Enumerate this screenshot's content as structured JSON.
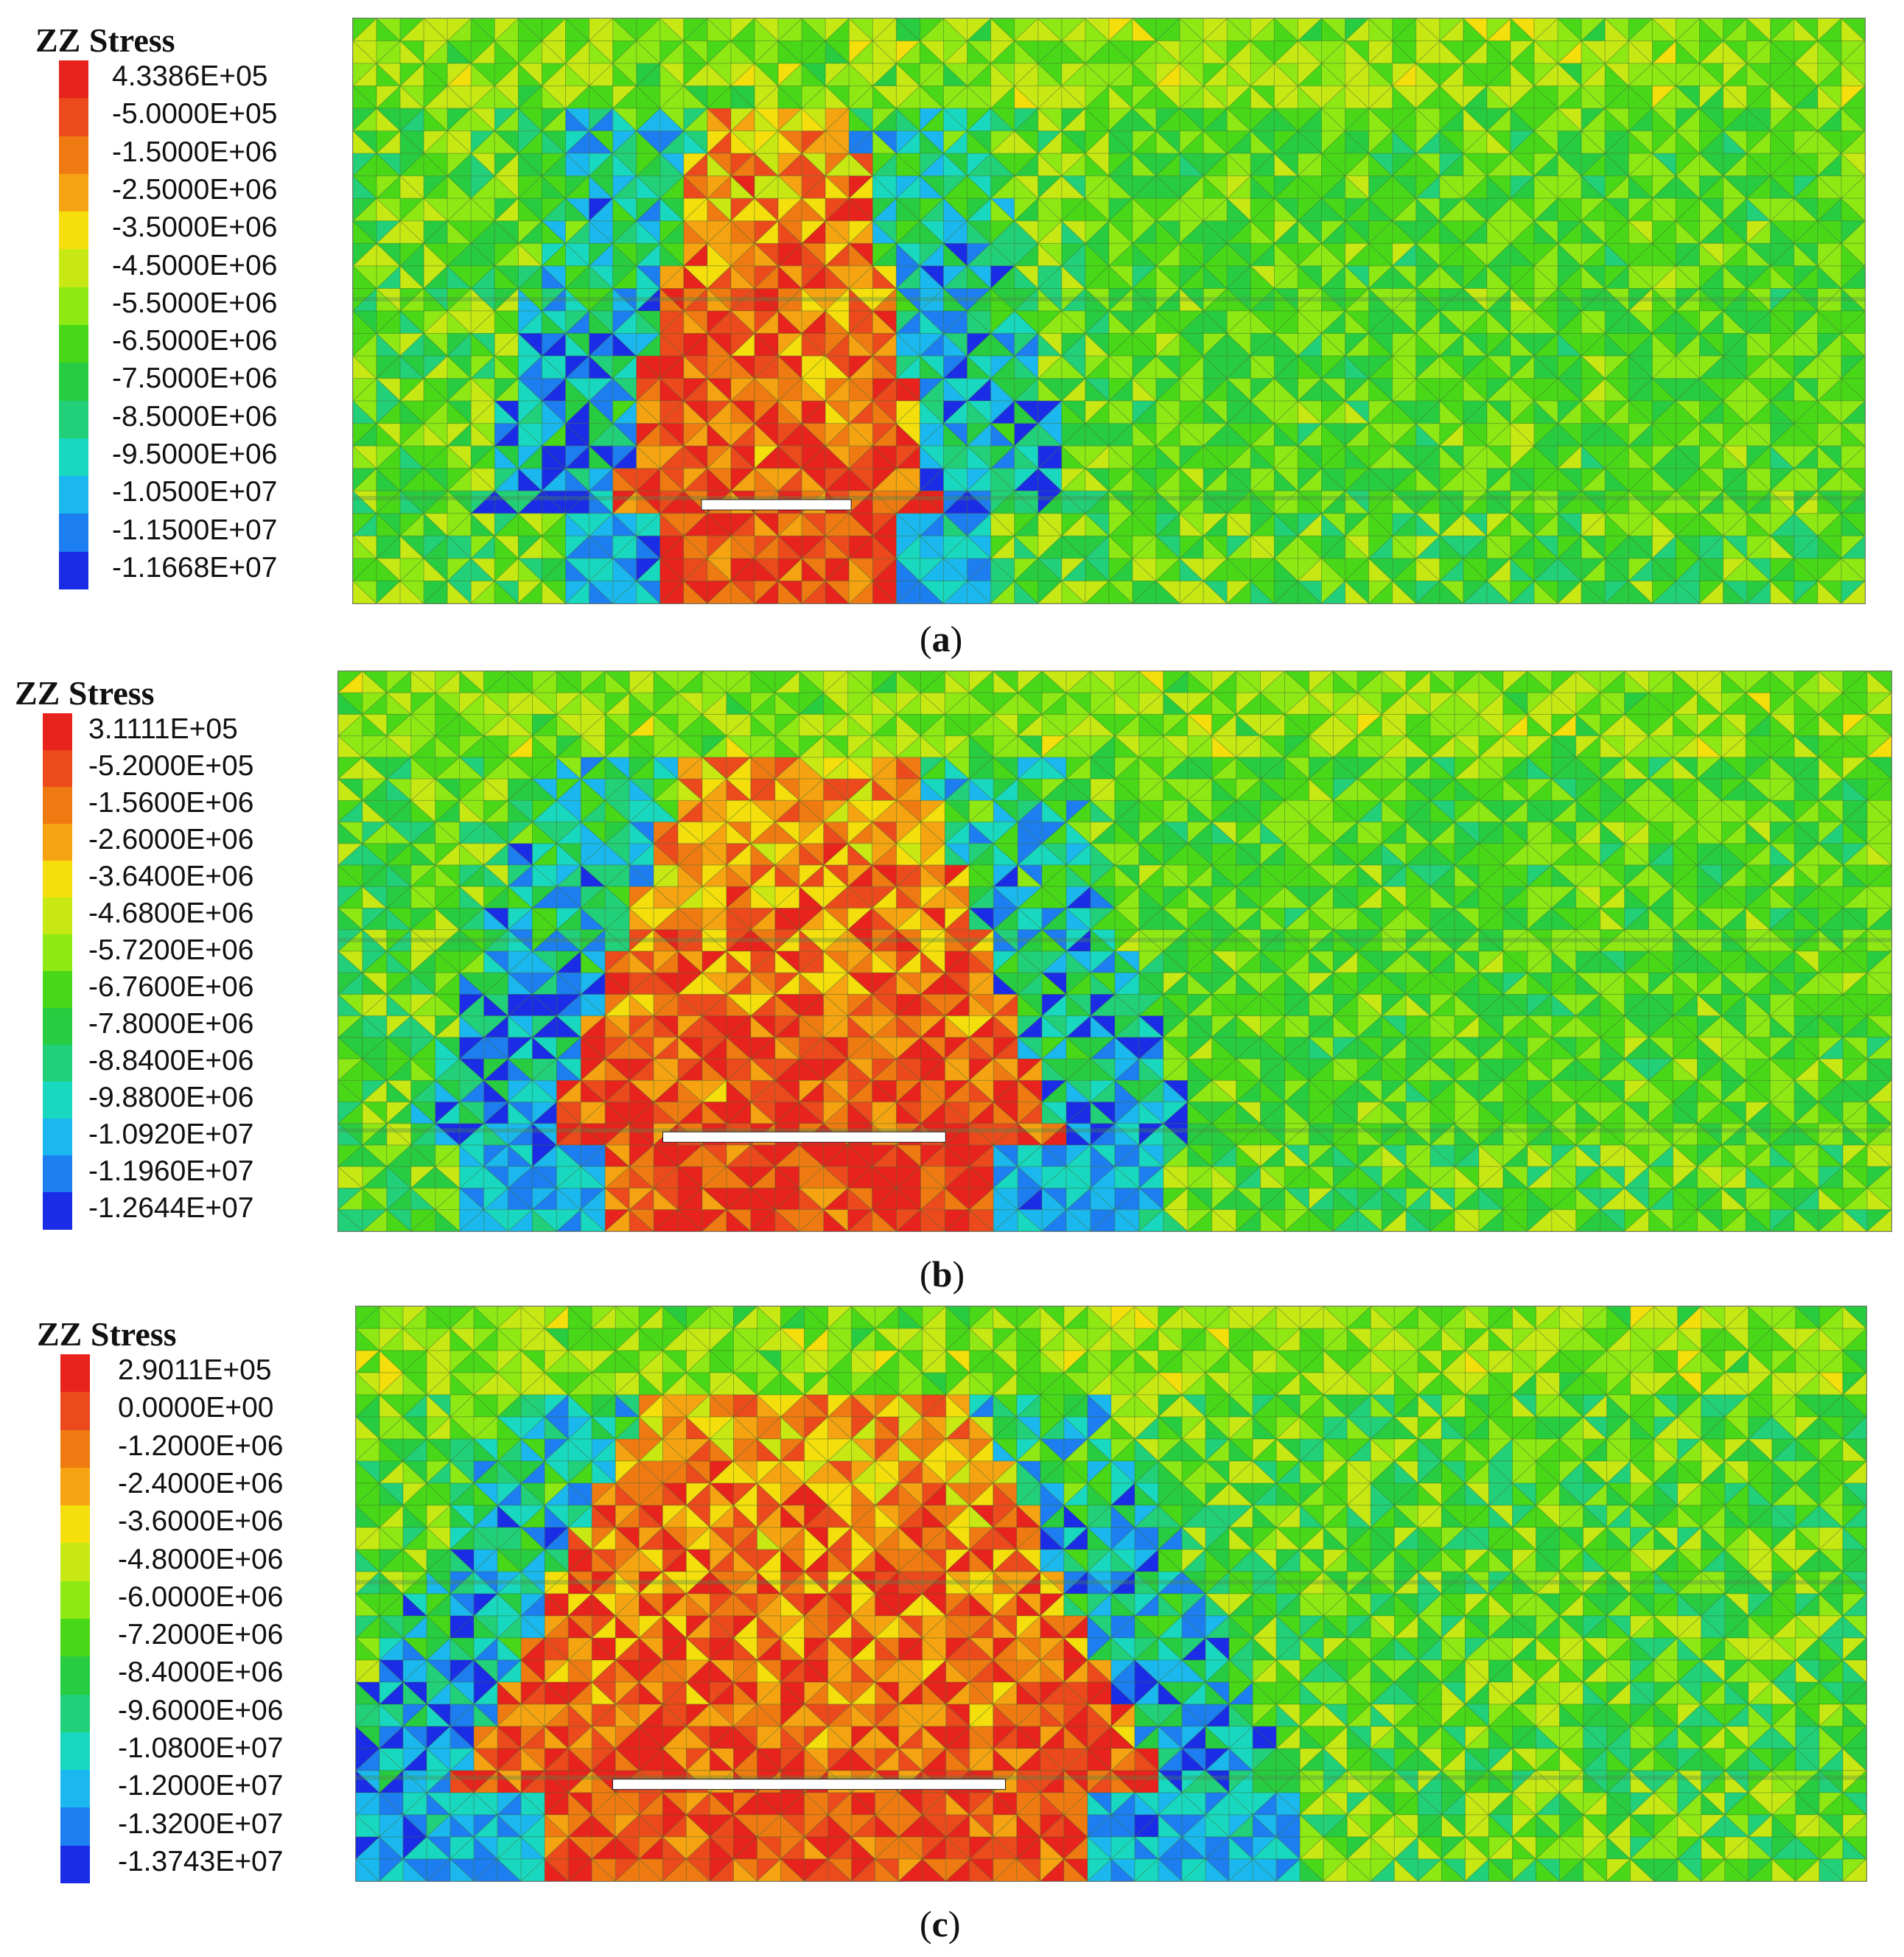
{
  "panels": [
    {
      "id": "a",
      "legend_title": "ZZ Stress",
      "caption_open": "(",
      "caption_letter": "a",
      "caption_close": ")",
      "legend_values": [
        "4.3386E+05",
        "-5.0000E+05",
        "-1.5000E+06",
        "-2.5000E+06",
        "-3.5000E+06",
        "-4.5000E+06",
        "-5.5000E+06",
        "-6.5000E+06",
        "-7.5000E+06",
        "-8.5000E+06",
        "-9.5000E+06",
        "-1.0500E+07",
        "-1.1500E+07",
        "-1.1668E+07"
      ]
    },
    {
      "id": "b",
      "legend_title": "ZZ Stress",
      "caption_open": "(",
      "caption_letter": "b",
      "caption_close": ")",
      "legend_values": [
        "3.1111E+05",
        "-5.2000E+05",
        "-1.5600E+06",
        "-2.6000E+06",
        "-3.6400E+06",
        "-4.6800E+06",
        "-5.7200E+06",
        "-6.7600E+06",
        "-7.8000E+06",
        "-8.8400E+06",
        "-9.8800E+06",
        "-1.0920E+07",
        "-1.1960E+07",
        "-1.2644E+07"
      ]
    },
    {
      "id": "c",
      "legend_title": "ZZ Stress",
      "caption_open": "(",
      "caption_letter": "c",
      "caption_close": ")",
      "legend_values": [
        "2.9011E+05",
        "0.0000E+00",
        "-1.2000E+06",
        "-2.4000E+06",
        "-3.6000E+06",
        "-4.8000E+06",
        "-6.0000E+06",
        "-7.2000E+06",
        "-8.4000E+06",
        "-9.6000E+06",
        "-1.0800E+07",
        "-1.2000E+07",
        "-1.3200E+07",
        "-1.3743E+07"
      ]
    }
  ],
  "colors": {
    "scale": [
      "#e8221c",
      "#ec4a1c",
      "#f07a12",
      "#f6a312",
      "#f4de0c",
      "#c8e814",
      "#8ee814",
      "#48d818",
      "#28cc40",
      "#22d07a",
      "#18d8c0",
      "#1ab8ee",
      "#1c7ef0",
      "#1a2ce6"
    ]
  }
}
